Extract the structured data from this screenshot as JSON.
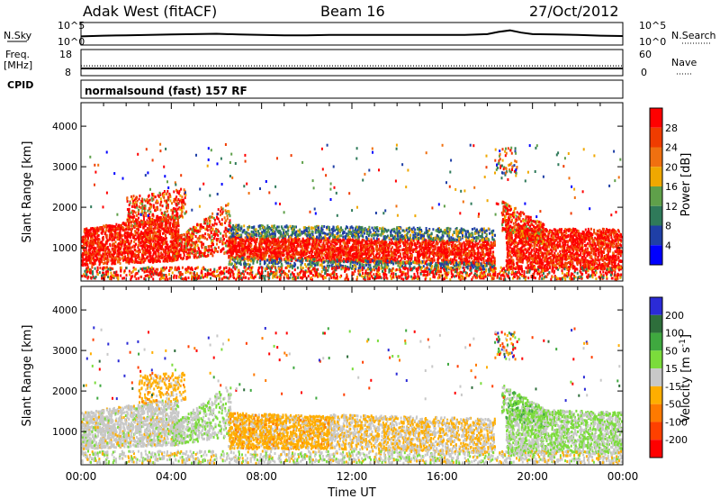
{
  "header": {
    "station": "Adak West (fitACF)",
    "beam": "Beam 16",
    "date": "27/Oct/2012"
  },
  "colors": {
    "power": [
      "#0000ff",
      "#1f3fa6",
      "#2f7a5a",
      "#5fa04a",
      "#f0a800",
      "#f07010",
      "#f03c00",
      "#ff0000"
    ],
    "velocity": [
      "#2b2bd6",
      "#2e6e3b",
      "#3fa83f",
      "#7bdc3b",
      "#c8c8c8",
      "#ffae00",
      "#ff7a00",
      "#ff4000",
      "#ff0000"
    ]
  },
  "chart_data": [
    {
      "type": "line",
      "panel": "noise",
      "left_label": "N.Sky",
      "right_label": "N.Search",
      "yticks_left": [
        "10^5",
        "10^0"
      ],
      "yticks_right": [
        "10^5",
        "10^0"
      ],
      "series": [
        {
          "name": "N.Sky",
          "x": [
            0,
            1,
            2,
            3,
            4,
            5,
            6,
            7,
            8,
            9,
            10,
            11,
            12,
            13,
            14,
            15,
            16,
            17,
            18,
            18.5,
            19,
            19.5,
            20,
            21,
            22,
            23,
            24
          ],
          "y": [
            1.8,
            2.0,
            2.1,
            2.2,
            2.3,
            2.4,
            2.5,
            2.3,
            2.2,
            2.1,
            2.1,
            2.2,
            2.2,
            2.2,
            2.2,
            2.2,
            2.2,
            2.2,
            2.4,
            3.0,
            3.4,
            2.8,
            2.4,
            2.3,
            2.2,
            2.0,
            1.9
          ]
        }
      ]
    },
    {
      "type": "line",
      "panel": "frequency",
      "left_label": "Freq.",
      "left_unit": "[MHz]",
      "right_label": "Nave",
      "yticks_left": [
        "18",
        "8"
      ],
      "yticks_right": [
        "60",
        "0"
      ],
      "series": [
        {
          "name": "Freq.",
          "x": [
            0,
            24
          ],
          "y": [
            10.6,
            10.6
          ]
        },
        {
          "name": "Nave",
          "x": [
            0,
            24
          ],
          "y": [
            22,
            22
          ]
        }
      ]
    },
    {
      "type": "label",
      "panel": "cpid",
      "left_label": "CPID",
      "text": "normalsound (fast) 157 RF"
    },
    {
      "type": "heatmap",
      "panel": "power",
      "ylabel": "Slant Range [km]",
      "ylim": [
        180,
        4580
      ],
      "yticks": [
        1000,
        2000,
        3000,
        4000
      ],
      "xlim": [
        0,
        24
      ],
      "colorbar_label": "Power [dB]",
      "colorbar_ticks": [
        4,
        8,
        12,
        16,
        20,
        24,
        28
      ]
    },
    {
      "type": "heatmap",
      "panel": "velocity",
      "ylabel": "Slant Range [km]",
      "ylim": [
        180,
        4580
      ],
      "yticks": [
        1000,
        2000,
        3000,
        4000
      ],
      "xlim": [
        0,
        24
      ],
      "xlabel": "Time UT",
      "xticks": [
        "00:00",
        "04:00",
        "08:00",
        "12:00",
        "16:00",
        "20:00",
        "00:00"
      ],
      "colorbar_label": "Velocity [m s^-1]",
      "colorbar_ticks": [
        200,
        100,
        50,
        15,
        -15,
        -50,
        -100,
        -200
      ]
    }
  ]
}
